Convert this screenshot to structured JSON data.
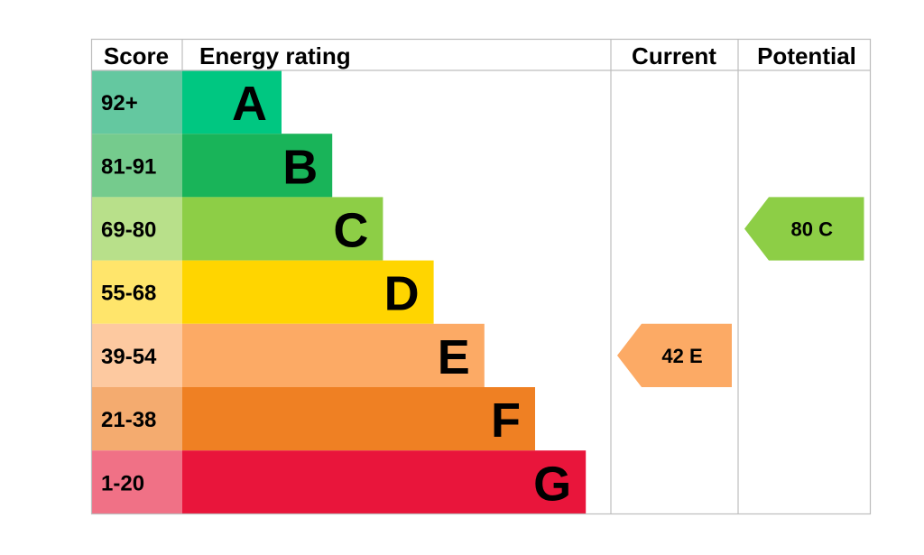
{
  "headers": {
    "score": "Score",
    "energy_rating": "Energy rating",
    "current": "Current",
    "potential": "Potential"
  },
  "chart_data": {
    "type": "bar",
    "bands": [
      {
        "letter": "A",
        "score": "92+",
        "color": "#00c781",
        "score_color": "#64c8a0",
        "min": 92,
        "max": 100
      },
      {
        "letter": "B",
        "score": "81-91",
        "color": "#19b459",
        "score_color": "#75cb8d",
        "min": 81,
        "max": 91
      },
      {
        "letter": "C",
        "score": "69-80",
        "color": "#8dce46",
        "score_color": "#b8e08a",
        "min": 69,
        "max": 80
      },
      {
        "letter": "D",
        "score": "55-68",
        "color": "#ffd500",
        "score_color": "#ffe56b",
        "min": 55,
        "max": 68
      },
      {
        "letter": "E",
        "score": "39-54",
        "color": "#fcaa65",
        "score_color": "#fdc9a0",
        "min": 39,
        "max": 54
      },
      {
        "letter": "F",
        "score": "21-38",
        "color": "#ef8023",
        "score_color": "#f4ab6f",
        "min": 21,
        "max": 38
      },
      {
        "letter": "G",
        "score": "1-20",
        "color": "#e9153b",
        "score_color": "#f07186",
        "min": 1,
        "max": 20
      }
    ],
    "current": {
      "value": 42,
      "letter": "E",
      "label": "42  E",
      "color": "#fcaa65"
    },
    "potential": {
      "value": 80,
      "letter": "C",
      "label": "80  C",
      "color": "#8dce46"
    }
  }
}
